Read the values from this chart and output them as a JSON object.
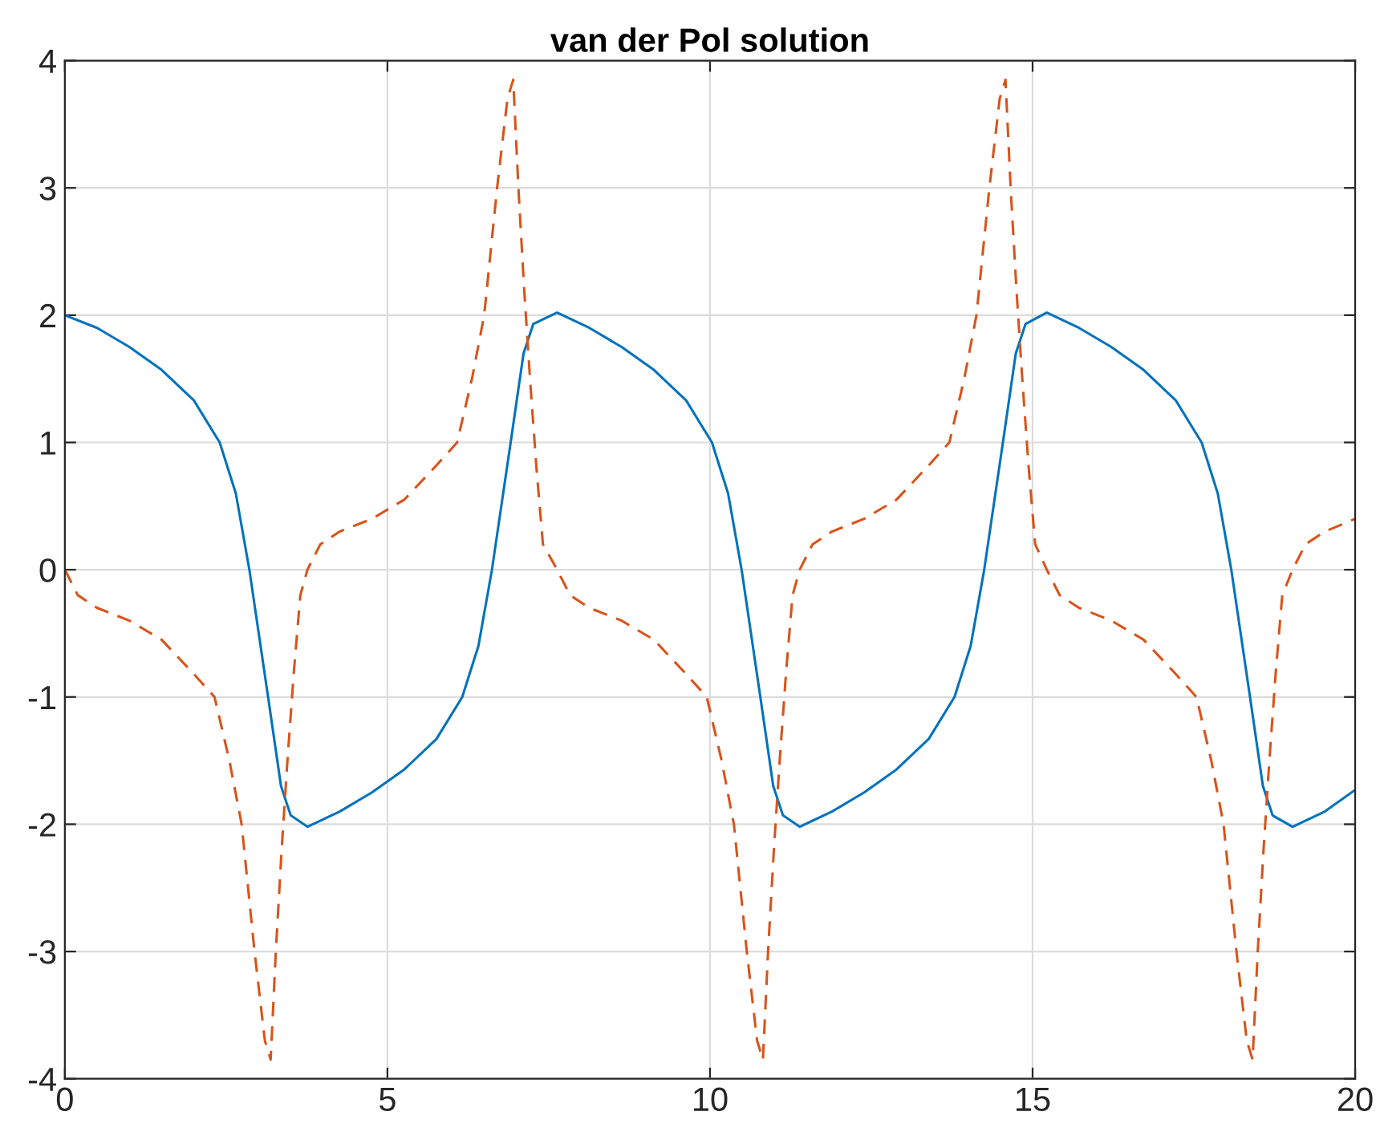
{
  "chart_data": {
    "type": "line",
    "title": "van der Pol solution",
    "xlim": [
      0,
      20
    ],
    "xticks": [
      0,
      5,
      10,
      15,
      20
    ],
    "ylim": [
      -4,
      4
    ],
    "yticks": [
      -4,
      -3,
      -2,
      -1,
      0,
      1,
      2,
      3,
      4
    ],
    "grid": true,
    "legend": false,
    "series": [
      {
        "color": "#0072bd",
        "line_style": "solid",
        "x": [
          0,
          0.5,
          1,
          1.5,
          2,
          2.4,
          2.65,
          2.86,
          3.15,
          3.35,
          3.5,
          3.76,
          4.26,
          4.76,
          5.26,
          5.76,
          6.16,
          6.41,
          6.62,
          6.91,
          7.11,
          7.26,
          7.63,
          8.13,
          8.63,
          9.13,
          9.63,
          10.03,
          10.28,
          10.49,
          10.78,
          10.98,
          11.13,
          11.39,
          11.89,
          12.39,
          12.89,
          13.39,
          13.79,
          14.04,
          14.25,
          14.54,
          14.74,
          14.89,
          15.22,
          15.72,
          16.22,
          16.72,
          17.22,
          17.62,
          17.87,
          18.08,
          18.37,
          18.57,
          18.72,
          19.03,
          19.53,
          20
        ],
        "values": [
          2.0,
          1.9,
          1.75,
          1.57,
          1.33,
          1.0,
          0.6,
          0,
          -1,
          -1.7,
          -1.93,
          -2.02,
          -1.9,
          -1.75,
          -1.57,
          -1.33,
          -1.0,
          -0.6,
          0,
          1,
          1.7,
          1.93,
          2.02,
          1.9,
          1.75,
          1.57,
          1.33,
          1.0,
          0.6,
          0,
          -1,
          -1.7,
          -1.93,
          -2.02,
          -1.9,
          -1.75,
          -1.57,
          -1.33,
          -1.0,
          -0.6,
          0,
          1,
          1.7,
          1.93,
          2.02,
          1.9,
          1.75,
          1.57,
          1.33,
          1.0,
          0.6,
          0,
          -1,
          -1.7,
          -1.93,
          -2.02,
          -1.9,
          -1.73
        ]
      },
      {
        "color": "#d95319",
        "line_style": "dashed",
        "x": [
          0,
          0.2,
          0.5,
          1,
          1.5,
          2,
          2.32,
          2.55,
          2.74,
          2.94,
          3.1,
          3.19,
          3.27,
          3.36,
          3.45,
          3.55,
          3.65,
          3.76,
          3.96,
          4.26,
          4.76,
          5.26,
          5.76,
          6.08,
          6.31,
          6.5,
          6.7,
          6.86,
          6.95,
          7.03,
          7.12,
          7.21,
          7.31,
          7.41,
          7.63,
          7.83,
          8.13,
          8.63,
          9.13,
          9.63,
          9.95,
          10.18,
          10.37,
          10.57,
          10.73,
          10.82,
          10.9,
          10.99,
          11.08,
          11.18,
          11.28,
          11.39,
          11.59,
          11.89,
          12.39,
          12.89,
          13.39,
          13.71,
          13.94,
          14.13,
          14.33,
          14.49,
          14.58,
          14.66,
          14.75,
          14.84,
          14.94,
          15.04,
          15.22,
          15.42,
          15.72,
          16.22,
          16.72,
          17.22,
          17.54,
          17.77,
          17.96,
          18.16,
          18.32,
          18.41,
          18.49,
          18.58,
          18.67,
          18.77,
          18.87,
          19.03,
          19.23,
          19.53,
          20
        ],
        "values": [
          0,
          -0.2,
          -0.3,
          -0.4,
          -0.55,
          -0.82,
          -1.0,
          -1.5,
          -2.0,
          -3.0,
          -3.7,
          -3.85,
          -3.0,
          -2.2,
          -1.5,
          -0.8,
          -0.2,
          0,
          0.2,
          0.3,
          0.4,
          0.55,
          0.82,
          1.0,
          1.5,
          2.0,
          3.0,
          3.7,
          3.85,
          3.0,
          2.2,
          1.5,
          0.8,
          0.2,
          0,
          -0.2,
          -0.3,
          -0.4,
          -0.55,
          -0.82,
          -1.0,
          -1.5,
          -2.0,
          -3.0,
          -3.7,
          -3.85,
          -3.0,
          -2.2,
          -1.5,
          -0.8,
          -0.2,
          0,
          0.2,
          0.3,
          0.4,
          0.55,
          0.82,
          1.0,
          1.5,
          2.0,
          3.0,
          3.7,
          3.85,
          3.0,
          2.2,
          1.5,
          0.8,
          0.2,
          0,
          -0.2,
          -0.3,
          -0.4,
          -0.55,
          -0.82,
          -1.0,
          -1.5,
          -2.0,
          -3.0,
          -3.7,
          -3.85,
          -3.0,
          -2.2,
          -1.5,
          -0.8,
          -0.2,
          0,
          0.2,
          0.3,
          0.4
        ]
      }
    ]
  }
}
